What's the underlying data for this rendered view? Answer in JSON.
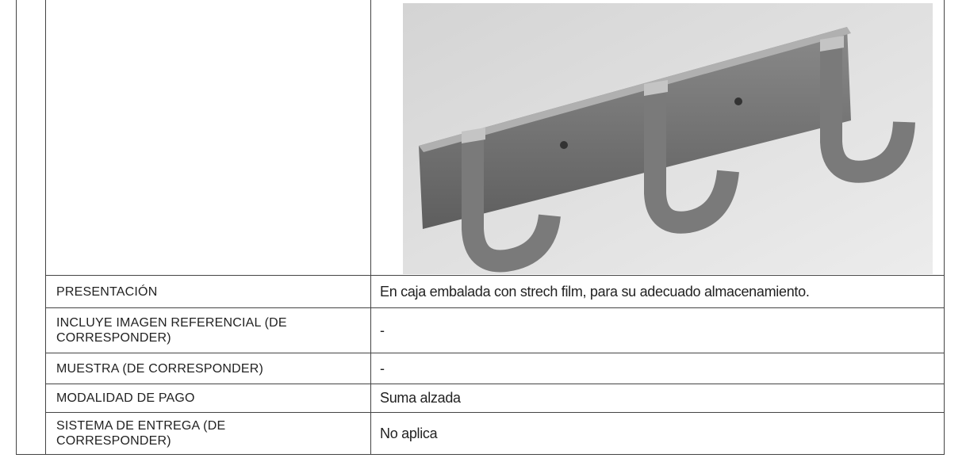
{
  "table": {
    "rows": [
      [
        "PRESENTACIÓN",
        "En caja embalada con strech film, para su adecuado almacenamiento."
      ],
      [
        "INCLUYE IMAGEN REFERENCIAL (DE CORRESPONDER)",
        "-"
      ],
      [
        "MUESTRA (DE CORRESPONDER)",
        "-"
      ],
      [
        "MODALIDAD DE PAGO",
        "Suma alzada"
      ],
      [
        "SISTEMA DE ENTREGA (DE CORRESPONDER)",
        "No aplica"
      ]
    ]
  }
}
